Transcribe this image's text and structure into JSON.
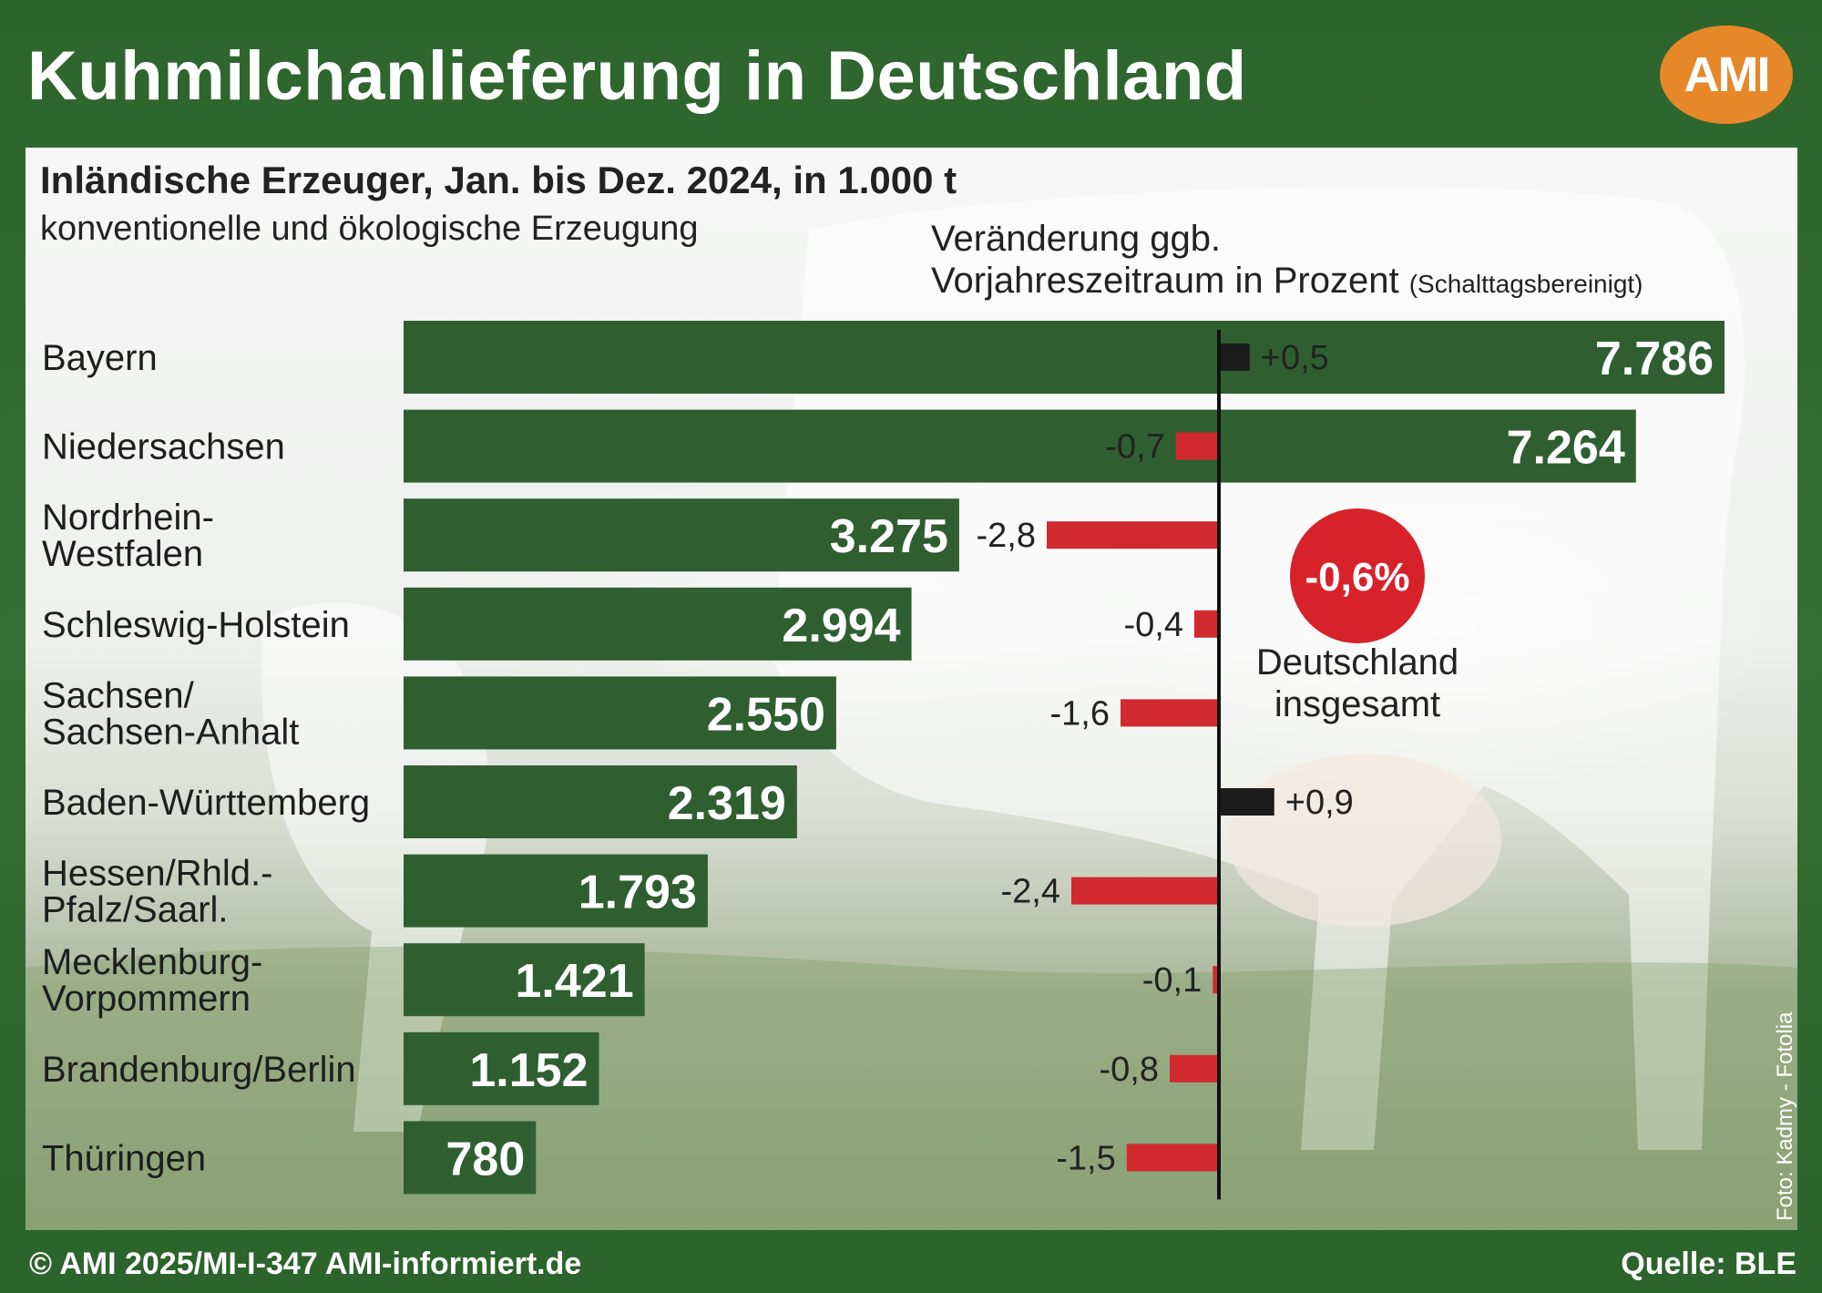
{
  "header": {
    "title": "Kuhmilchanlieferung in Deutschland",
    "logo_text": "AMI"
  },
  "colors": {
    "bar": "#2f5f30",
    "positive": "#1c1c1c",
    "negative": "#d02a2e",
    "total_badge": "#d7222a",
    "background": "#2f6a2f"
  },
  "chart_data": {
    "type": "bar",
    "title": "Inländische Erzeuger, Jan. bis Dez. 2024, in 1.000 t",
    "subtitle": "konventionelle und ökologische Erzeugung",
    "change_label_line1": "Veränderung ggb.",
    "change_label_line2": "Vorjahreszeitraum in Prozent",
    "change_label_note": "(Schalttagsbereinigt)",
    "categories": [
      [
        "Bayern"
      ],
      [
        "Niedersachsen"
      ],
      [
        "Nordrhein-",
        "Westfalen"
      ],
      [
        "Schleswig-Holstein"
      ],
      [
        "Sachsen/",
        "Sachsen-Anhalt"
      ],
      [
        "Baden-Württemberg"
      ],
      [
        "Hessen/Rhld.-",
        "Pfalz/Saarl."
      ],
      [
        "Mecklenburg-",
        "Vorpommern"
      ],
      [
        "Brandenburg/Berlin"
      ],
      [
        "Thüringen"
      ]
    ],
    "series": [
      {
        "values": [
          7786,
          7264,
          3275,
          2994,
          2550,
          2319,
          1793,
          1421,
          1152,
          780
        ],
        "labels": [
          "7.786",
          "7.264",
          "3.275",
          "2.994",
          "2.550",
          "2.319",
          "1.793",
          "1.421",
          "1.152",
          "780"
        ]
      },
      {
        "values": [
          0.5,
          -0.7,
          -2.8,
          -0.4,
          -1.6,
          0.9,
          -2.4,
          -0.1,
          -0.8,
          -1.5
        ],
        "labels": [
          "+0,5",
          "-0,7",
          "-2,8",
          "-0,4",
          "-1,6",
          "+0,9",
          "-2,4",
          "-0,1",
          "-0,8",
          "-1,5"
        ]
      }
    ],
    "total": {
      "value_label": "-0,6%",
      "label_line1": "Deutschland",
      "label_line2": "insgesamt"
    }
  },
  "credits": {
    "photo": "Foto: Kadmy - Fotolia"
  },
  "footer": {
    "left": "© AMI 2025/MI-I-347 AMI-informiert.de",
    "right": "Quelle: BLE"
  }
}
